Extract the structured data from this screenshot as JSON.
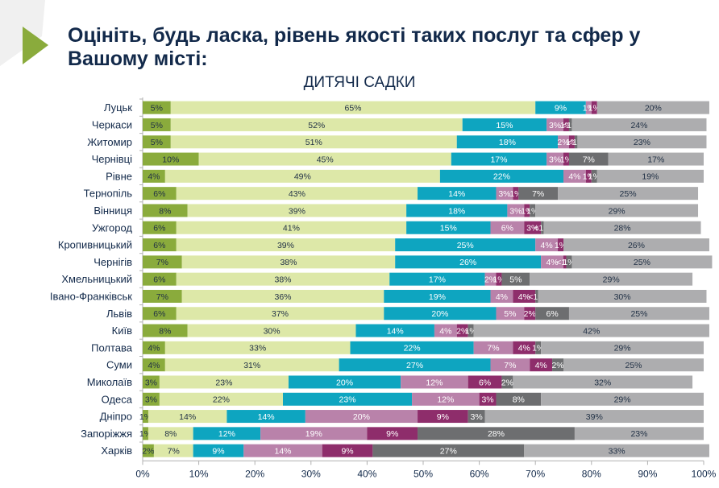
{
  "header": {
    "title": "Оцініть, будь ласка, рівень якості таких послуг та сфер у Вашому місті:",
    "subtitle": "ДИТЯЧІ САДКИ"
  },
  "chart_data": {
    "type": "bar",
    "orientation": "horizontal",
    "stacked": true,
    "title": "ДИТЯЧІ САДКИ",
    "xlabel": "",
    "ylabel": "",
    "xlim": [
      0,
      100
    ],
    "x_ticks": [
      "0%",
      "10%",
      "20%",
      "30%",
      "40%",
      "50%",
      "60%",
      "70%",
      "80%",
      "90%",
      "100%"
    ],
    "legend": null,
    "grid": false,
    "categories": [
      "Луцьк",
      "Черкаси",
      "Житомир",
      "Чернівці",
      "Рівне",
      "Тернопіль",
      "Вінниця",
      "Ужгород",
      "Кропивницький",
      "Чернігів",
      "Хмельницький",
      "Івано-Франківськ",
      "Львів",
      "Київ",
      "Полтава",
      "Суми",
      "Миколаїв",
      "Одеса",
      "Дніпро",
      "Запоріжжя",
      "Харків"
    ],
    "series": [
      {
        "name": "s1",
        "color": "#8aab3c",
        "label_color": "#1f2f44",
        "values": [
          5,
          5,
          5,
          10,
          4,
          6,
          8,
          6,
          6,
          7,
          6,
          7,
          6,
          8,
          4,
          4,
          3,
          3,
          1,
          1,
          2
        ],
        "labels": [
          "5%",
          "5%",
          "5%",
          "10%",
          "4%",
          "6%",
          "8%",
          "6%",
          "6%",
          "7%",
          "6%",
          "7%",
          "6%",
          "8%",
          "4%",
          "4%",
          "3%",
          "3%",
          "1%",
          "1%",
          "2%"
        ]
      },
      {
        "name": "s2",
        "color": "#dde8a8",
        "label_color": "#1f2f44",
        "values": [
          65,
          52,
          51,
          45,
          49,
          43,
          39,
          41,
          39,
          38,
          38,
          36,
          37,
          30,
          33,
          31,
          23,
          22,
          14,
          8,
          7
        ],
        "labels": [
          "65%",
          "52%",
          "51%",
          "45%",
          "49%",
          "43%",
          "39%",
          "41%",
          "39%",
          "38%",
          "38%",
          "36%",
          "37%",
          "30%",
          "33%",
          "31%",
          "23%",
          "22%",
          "14%",
          "8%",
          "7%"
        ]
      },
      {
        "name": "s3",
        "color": "#0ea5c0",
        "label_color": "#ffffff",
        "values": [
          9,
          15,
          18,
          17,
          22,
          14,
          18,
          15,
          25,
          26,
          17,
          19,
          20,
          14,
          22,
          27,
          20,
          23,
          14,
          12,
          9
        ],
        "labels": [
          "9%",
          "15%",
          "18%",
          "17%",
          "22%",
          "14%",
          "18%",
          "15%",
          "25%",
          "26%",
          "17%",
          "19%",
          "20%",
          "14%",
          "22%",
          "27%",
          "20%",
          "23%",
          "14%",
          "12%",
          "9%"
        ]
      },
      {
        "name": "s4",
        "color": "#b982aa",
        "label_color": "#ffffff",
        "values": [
          1,
          3,
          2,
          3,
          4,
          3,
          3,
          6,
          4,
          4,
          2,
          4,
          5,
          4,
          7,
          7,
          12,
          12,
          20,
          19,
          14
        ],
        "labels": [
          "1%",
          "3%",
          "2%",
          "3%",
          "4%",
          "3%",
          "3%",
          "6%",
          "4%",
          "4%",
          "2%",
          "4%",
          "5%",
          "4%",
          "7%",
          "7%",
          "12%",
          "12%",
          "20%",
          "19%",
          "14%"
        ]
      },
      {
        "name": "s5",
        "color": "#8e2d6b",
        "label_color": "#ffffff",
        "values": [
          1,
          1,
          1,
          1,
          1,
          1,
          1,
          3,
          1,
          0.5,
          1,
          4,
          2,
          2,
          4,
          4,
          6,
          3,
          9,
          9,
          9
        ],
        "labels": [
          "1%",
          "1%",
          "1%",
          "1%",
          "1%",
          "1%",
          "1%",
          "3%",
          "1%",
          "<1%",
          "1%",
          "4%",
          "2%",
          "2%",
          "4%",
          "4%",
          "6%",
          "3%",
          "9%",
          "9%",
          "9%"
        ]
      },
      {
        "name": "s6",
        "color": "#6d6e70",
        "label_color": "#ffffff",
        "values": [
          0,
          0.5,
          0.5,
          7,
          1,
          7,
          1,
          0.5,
          0,
          1,
          5,
          0.5,
          6,
          1,
          1,
          2,
          2,
          8,
          3,
          28,
          27
        ],
        "labels": [
          "",
          "<1%",
          "<1%",
          "7%",
          "1%",
          "7%",
          "1%",
          "<1%",
          "",
          "1%",
          "5%",
          "<1%",
          "6%",
          "1%",
          "1%",
          "2%",
          "2%",
          "8%",
          "3%",
          "28%",
          "27%"
        ]
      },
      {
        "name": "s7",
        "color": "#adadaf",
        "label_color": "#1f2f44",
        "values": [
          20,
          24,
          23,
          17,
          19,
          25,
          29,
          28,
          26,
          25,
          29,
          30,
          25,
          42,
          29,
          25,
          32,
          29,
          39,
          23,
          33
        ],
        "labels": [
          "20%",
          "24%",
          "23%",
          "17%",
          "19%",
          "25%",
          "29%",
          "28%",
          "26%",
          "25%",
          "29%",
          "30%",
          "25%",
          "42%",
          "29%",
          "25%",
          "32%",
          "29%",
          "39%",
          "23%",
          "33%"
        ]
      }
    ]
  }
}
